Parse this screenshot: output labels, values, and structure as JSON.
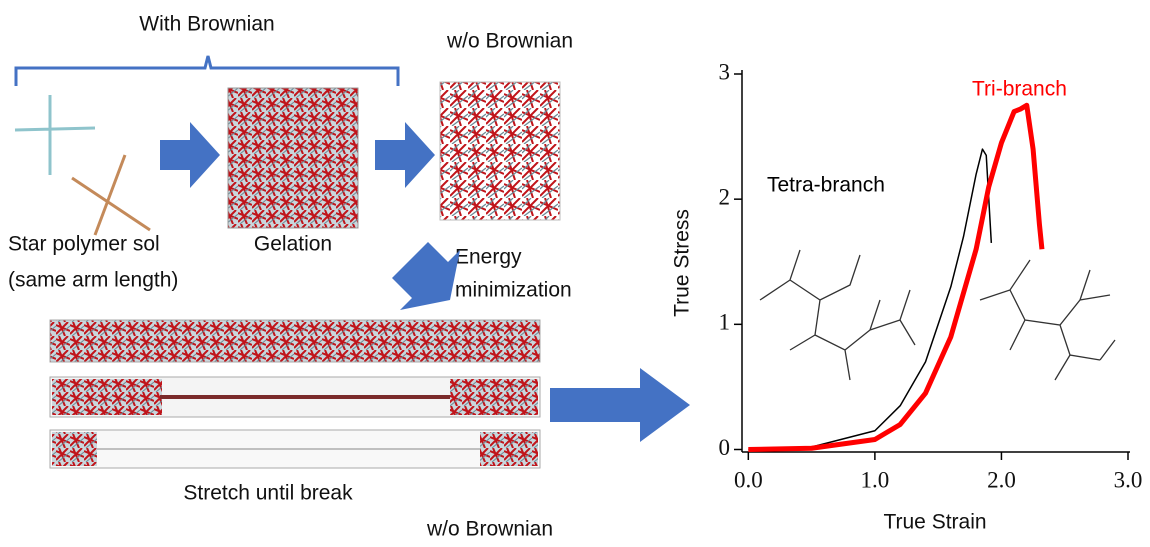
{
  "diagram": {
    "with_brownian": "With Brownian",
    "wo_brownian_top": "w/o Brownian",
    "star_polymer": "Star polymer sol",
    "same_arm": "(same arm length)",
    "gelation": "Gelation",
    "energy": "Energy",
    "minimization": "minimization",
    "stretch": "Stretch until break",
    "wo_brownian_bottom": "w/o Brownian"
  },
  "chart_data": {
    "type": "line",
    "x_label": "True Strain",
    "y_label": "True Stress",
    "xlim": [
      -0.05,
      3.0
    ],
    "ylim": [
      -0.02,
      3.0
    ],
    "xticks": [
      {
        "value": 0,
        "label": "0.0"
      },
      {
        "value": 1,
        "label": "1.0"
      },
      {
        "value": 2,
        "label": "2.0"
      },
      {
        "value": 3,
        "label": "3.0"
      }
    ],
    "yticks": [
      0,
      1,
      2,
      3
    ],
    "series": [
      {
        "name": "Tetra-branch",
        "color": "#000000",
        "x": [
          0,
          0.5,
          1.0,
          1.2,
          1.4,
          1.6,
          1.7,
          1.8,
          1.85,
          1.88,
          1.9,
          1.92
        ],
        "values": [
          0,
          0.02,
          0.15,
          0.35,
          0.7,
          1.3,
          1.7,
          2.2,
          2.4,
          2.35,
          2.0,
          1.65
        ]
      },
      {
        "name": "Tri-branch",
        "color": "#ff0000",
        "x": [
          0,
          0.5,
          1.0,
          1.2,
          1.4,
          1.6,
          1.8,
          1.9,
          2.0,
          2.1,
          2.15,
          2.2,
          2.25,
          2.3,
          2.32
        ],
        "values": [
          0,
          0.01,
          0.08,
          0.2,
          0.45,
          0.9,
          1.6,
          2.1,
          2.45,
          2.7,
          2.72,
          2.75,
          2.4,
          1.8,
          1.6
        ]
      }
    ]
  }
}
